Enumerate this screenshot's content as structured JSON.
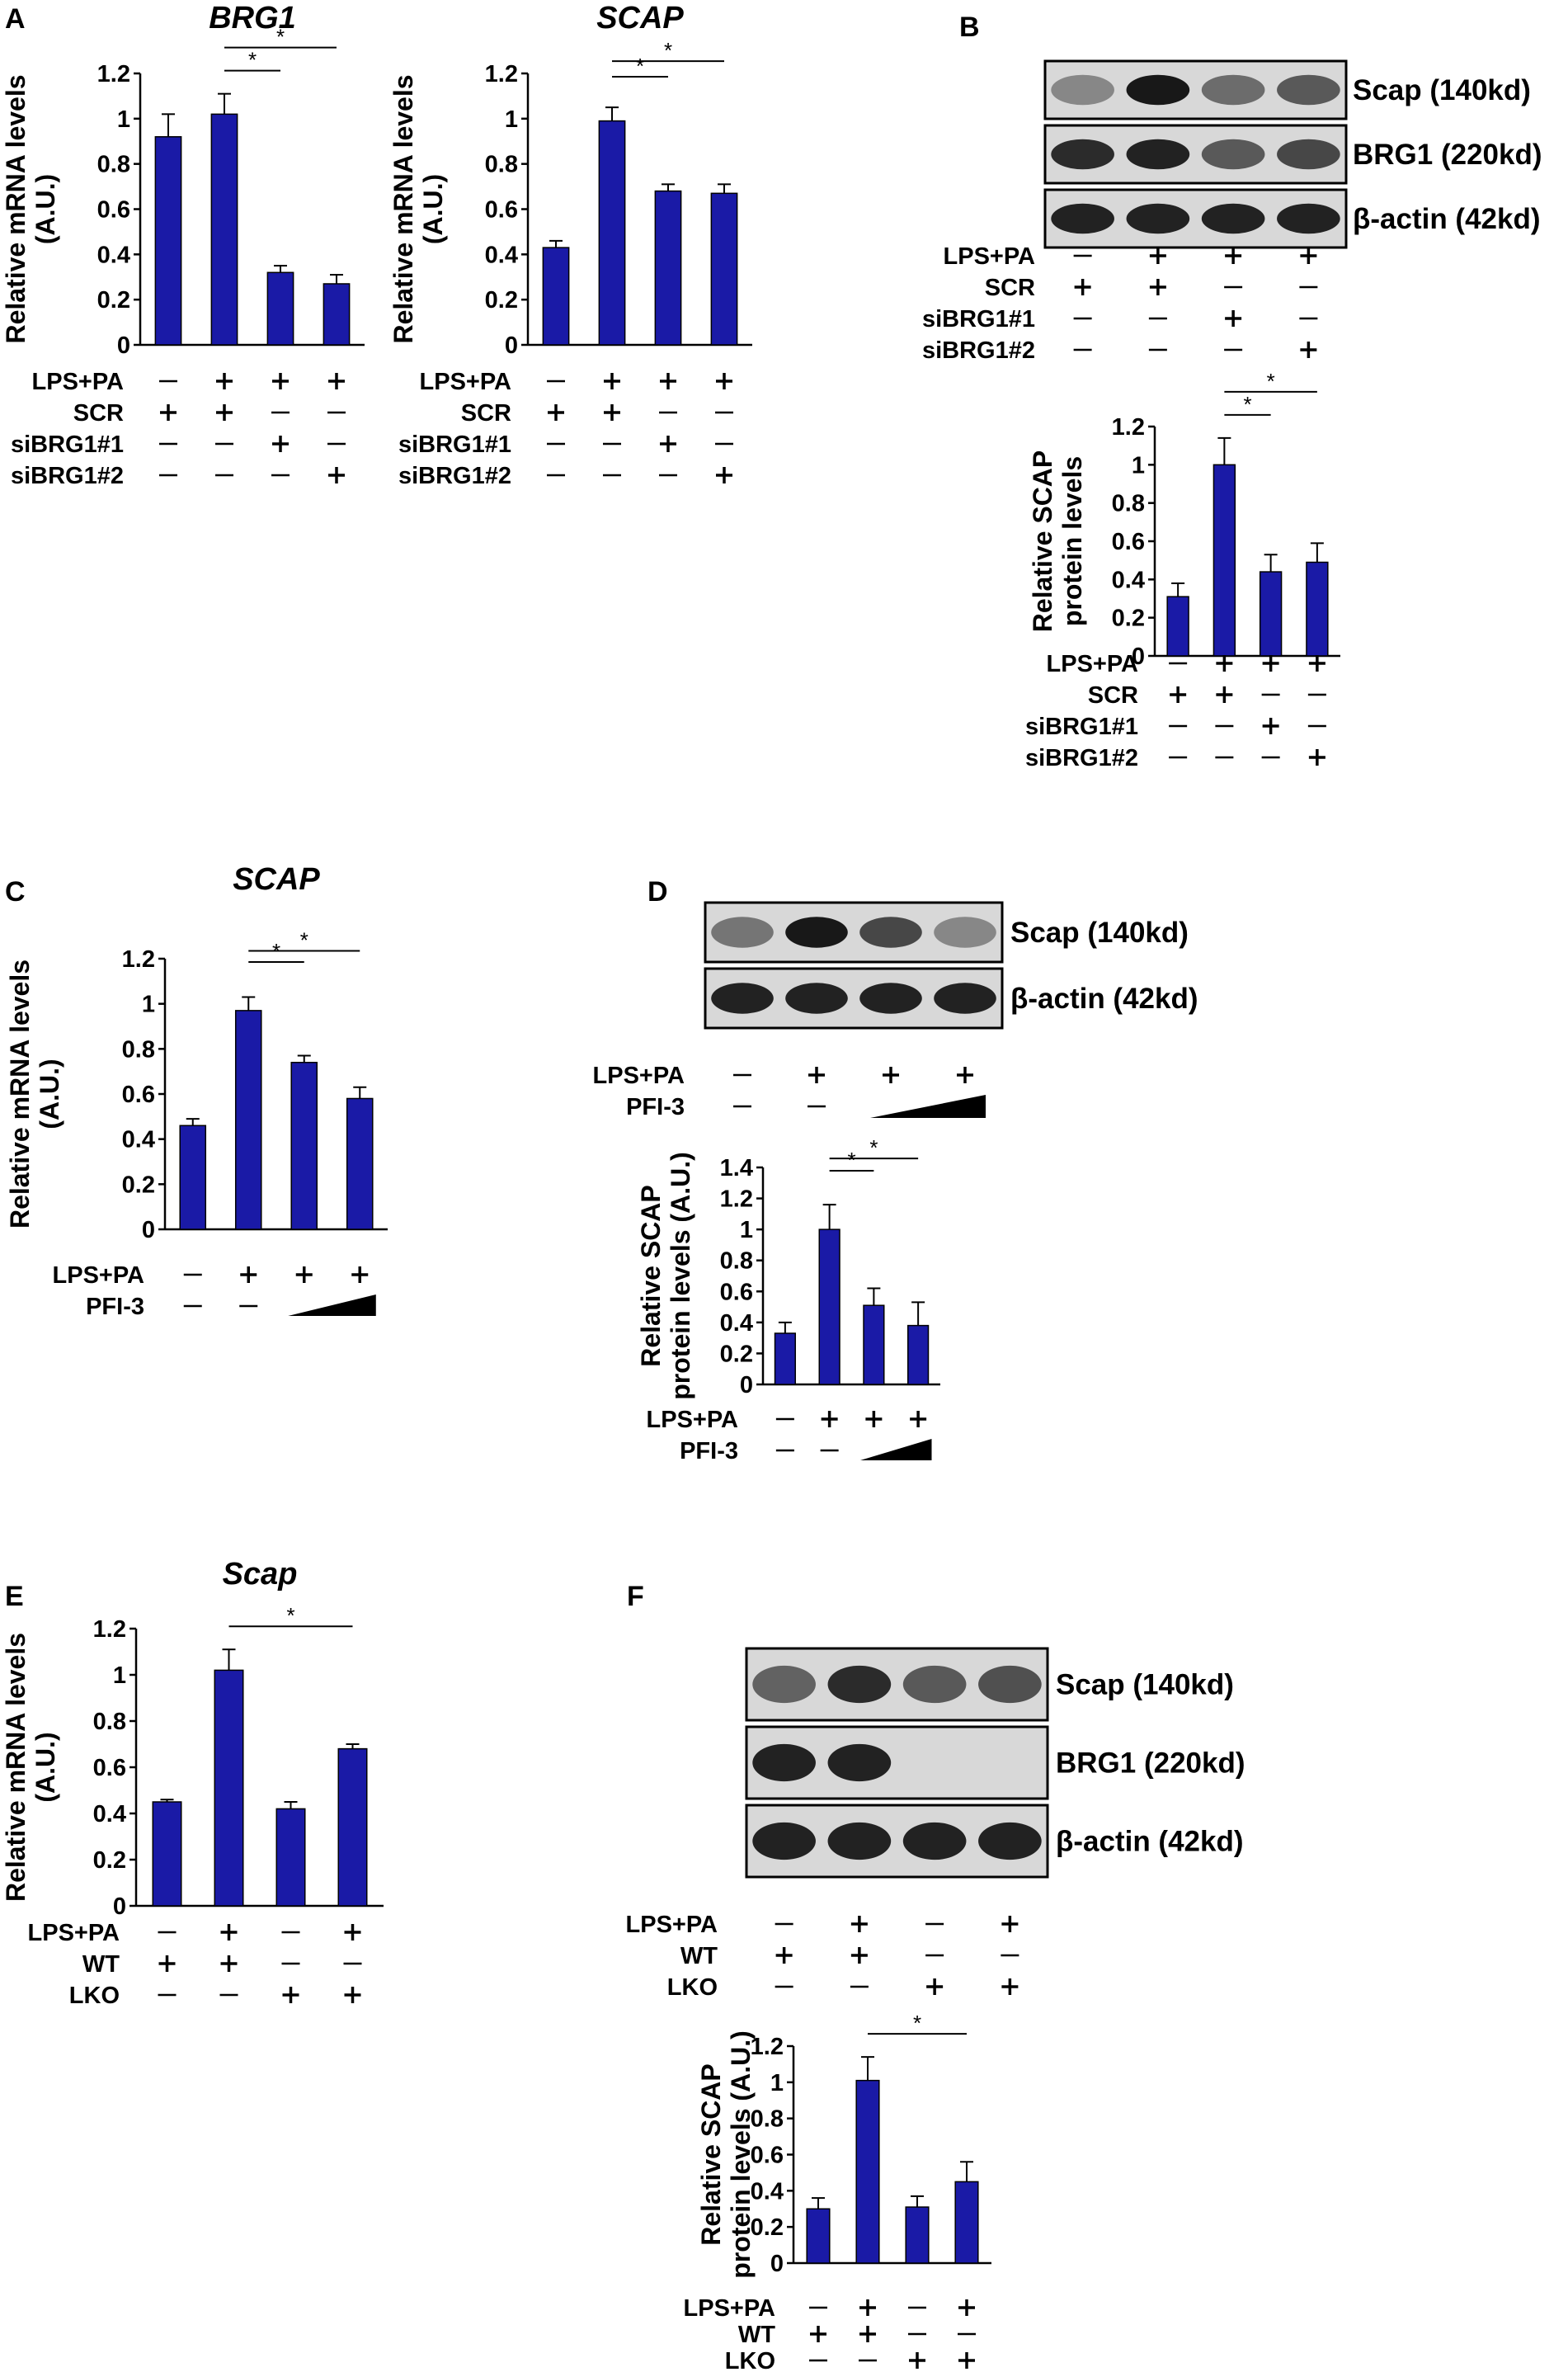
{
  "figure": {
    "panels": [
      "A",
      "B",
      "C",
      "D",
      "E",
      "F"
    ],
    "bar_color": "#1a1aa6"
  },
  "chart_data": [
    {
      "id": "A1",
      "panel": "A",
      "type": "bar",
      "title": "BRG1",
      "xlabel": "",
      "ylabel": "Relative mRNA levels (A.U.)",
      "ylim": [
        0,
        1.2
      ],
      "yticks": [
        "0",
        "0.2",
        "0.4",
        "0.6",
        "0.8",
        "1",
        "1.2"
      ],
      "categories": [
        "1",
        "2",
        "3",
        "4"
      ],
      "values": [
        0.92,
        1.02,
        0.32,
        0.27
      ],
      "errors": [
        0.1,
        0.09,
        0.03,
        0.04
      ],
      "significance": [
        {
          "from": 1,
          "to": 2,
          "label": "*"
        },
        {
          "from": 1,
          "to": 3,
          "label": "*"
        }
      ],
      "conditions": [
        {
          "name": "LPS+PA",
          "marks": [
            "−",
            "+",
            "+",
            "+"
          ]
        },
        {
          "name": "SCR",
          "marks": [
            "+",
            "+",
            "−",
            "−"
          ]
        },
        {
          "name": "siBRG1#1",
          "marks": [
            "−",
            "−",
            "+",
            "−"
          ]
        },
        {
          "name": "siBRG1#2",
          "marks": [
            "−",
            "−",
            "−",
            "+"
          ]
        }
      ]
    },
    {
      "id": "A2",
      "panel": "A",
      "type": "bar",
      "title": "SCAP",
      "xlabel": "",
      "ylabel": "Relative mRNA levels (A.U.)",
      "ylim": [
        0,
        1.2
      ],
      "yticks": [
        "0",
        "0.2",
        "0.4",
        "0.6",
        "0.8",
        "1",
        "1.2"
      ],
      "categories": [
        "1",
        "2",
        "3",
        "4"
      ],
      "values": [
        0.43,
        0.99,
        0.68,
        0.67
      ],
      "errors": [
        0.03,
        0.06,
        0.03,
        0.04
      ],
      "significance": [
        {
          "from": 1,
          "to": 2,
          "label": "*"
        },
        {
          "from": 1,
          "to": 3,
          "label": "*"
        }
      ],
      "conditions": [
        {
          "name": "LPS+PA",
          "marks": [
            "−",
            "+",
            "+",
            "+"
          ]
        },
        {
          "name": "SCR",
          "marks": [
            "+",
            "+",
            "−",
            "−"
          ]
        },
        {
          "name": "siBRG1#1",
          "marks": [
            "−",
            "−",
            "+",
            "−"
          ]
        },
        {
          "name": "siBRG1#2",
          "marks": [
            "−",
            "−",
            "−",
            "+"
          ]
        }
      ]
    },
    {
      "id": "B",
      "panel": "B",
      "type": "bar",
      "title": "",
      "xlabel": "",
      "ylabel": "Relative SCAP protein levels",
      "ylim": [
        0,
        1.2
      ],
      "yticks": [
        "0",
        "0.2",
        "0.4",
        "0.6",
        "0.8",
        "1",
        "1.2"
      ],
      "categories": [
        "1",
        "2",
        "3",
        "4"
      ],
      "values": [
        0.31,
        1.0,
        0.44,
        0.49
      ],
      "errors": [
        0.07,
        0.14,
        0.09,
        0.1
      ],
      "significance": [
        {
          "from": 1,
          "to": 2,
          "label": "*"
        },
        {
          "from": 1,
          "to": 3,
          "label": "*"
        }
      ],
      "conditions": [
        {
          "name": "LPS+PA",
          "marks": [
            "−",
            "+",
            "+",
            "+"
          ]
        },
        {
          "name": "SCR",
          "marks": [
            "+",
            "+",
            "−",
            "−"
          ]
        },
        {
          "name": "siBRG1#1",
          "marks": [
            "−",
            "−",
            "+",
            "−"
          ]
        },
        {
          "name": "siBRG1#2",
          "marks": [
            "−",
            "−",
            "−",
            "+"
          ]
        }
      ]
    },
    {
      "id": "C",
      "panel": "C",
      "type": "bar",
      "title": "SCAP",
      "xlabel": "",
      "ylabel": "Relative mRNA levels (A.U.)",
      "ylim": [
        0,
        1.2
      ],
      "yticks": [
        "0",
        "0.2",
        "0.4",
        "0.6",
        "0.8",
        "1",
        "1.2"
      ],
      "categories": [
        "1",
        "2",
        "3",
        "4"
      ],
      "values": [
        0.46,
        0.97,
        0.74,
        0.58
      ],
      "errors": [
        0.03,
        0.06,
        0.03,
        0.05
      ],
      "significance": [
        {
          "from": 1,
          "to": 2,
          "label": "*"
        },
        {
          "from": 1,
          "to": 3,
          "label": "*"
        }
      ],
      "conditions": [
        {
          "name": "LPS+PA",
          "marks": [
            "−",
            "+",
            "+",
            "+"
          ]
        },
        {
          "name": "PFI-3",
          "marks": [
            "−",
            "−",
            "wedge",
            "wedge"
          ]
        }
      ]
    },
    {
      "id": "D",
      "panel": "D",
      "type": "bar",
      "title": "",
      "xlabel": "",
      "ylabel": "Relative SCAP protein levels (A.U.)",
      "ylim": [
        0,
        1.4
      ],
      "yticks": [
        "0",
        "0.2",
        "0.4",
        "0.6",
        "0.8",
        "1",
        "1.2",
        "1.4"
      ],
      "categories": [
        "1",
        "2",
        "3",
        "4"
      ],
      "values": [
        0.33,
        1.0,
        0.51,
        0.38
      ],
      "errors": [
        0.07,
        0.16,
        0.11,
        0.15
      ],
      "significance": [
        {
          "from": 1,
          "to": 2,
          "label": "*"
        },
        {
          "from": 1,
          "to": 3,
          "label": "*"
        }
      ],
      "conditions": [
        {
          "name": "LPS+PA",
          "marks": [
            "−",
            "+",
            "+",
            "+"
          ]
        },
        {
          "name": "PFI-3",
          "marks": [
            "−",
            "−",
            "wedge",
            "wedge"
          ]
        }
      ]
    },
    {
      "id": "E",
      "panel": "E",
      "type": "bar",
      "title": "Scap",
      "xlabel": "",
      "ylabel": "Relative mRNA levels (A.U.)",
      "ylim": [
        0,
        1.2
      ],
      "yticks": [
        "0",
        "0.2",
        "0.4",
        "0.6",
        "0.8",
        "1",
        "1.2"
      ],
      "categories": [
        "1",
        "2",
        "3",
        "4"
      ],
      "values": [
        0.45,
        1.02,
        0.42,
        0.68
      ],
      "errors": [
        0.01,
        0.09,
        0.03,
        0.02
      ],
      "significance": [
        {
          "from": 1,
          "to": 3,
          "label": "*"
        }
      ],
      "conditions": [
        {
          "name": "LPS+PA",
          "marks": [
            "−",
            "+",
            "−",
            "+"
          ]
        },
        {
          "name": "WT",
          "marks": [
            "+",
            "+",
            "−",
            "−"
          ]
        },
        {
          "name": "LKO",
          "marks": [
            "−",
            "−",
            "+",
            "+"
          ]
        }
      ]
    },
    {
      "id": "F",
      "panel": "F",
      "type": "bar",
      "title": "",
      "xlabel": "",
      "ylabel": "Relative SCAP protein levels (A.U.)",
      "ylim": [
        0,
        1.2
      ],
      "yticks": [
        "0",
        "0.2",
        "0.4",
        "0.6",
        "0.8",
        "1",
        "1.2"
      ],
      "categories": [
        "1",
        "2",
        "3",
        "4"
      ],
      "values": [
        0.3,
        1.01,
        0.31,
        0.45
      ],
      "errors": [
        0.06,
        0.13,
        0.06,
        0.11
      ],
      "significance": [
        {
          "from": 1,
          "to": 3,
          "label": "*"
        }
      ],
      "conditions": [
        {
          "name": "LPS+PA",
          "marks": [
            "−",
            "+",
            "−",
            "+"
          ]
        },
        {
          "name": "WT",
          "marks": [
            "+",
            "+",
            "−",
            "−"
          ]
        },
        {
          "name": "LKO",
          "marks": [
            "−",
            "−",
            "+",
            "+"
          ]
        }
      ]
    }
  ],
  "blots": [
    {
      "panel": "B",
      "bands": [
        {
          "label": "Scap (140kd)",
          "intensity": [
            0.35,
            0.95,
            0.5,
            0.6
          ]
        },
        {
          "label": "BRG1 (220kd)",
          "intensity": [
            0.85,
            0.9,
            0.6,
            0.7
          ]
        },
        {
          "label": "β-actin (42kd)",
          "intensity": [
            0.9,
            0.9,
            0.9,
            0.9
          ]
        }
      ],
      "conditions": [
        {
          "name": "LPS+PA",
          "marks": [
            "−",
            "+",
            "+",
            "+"
          ]
        },
        {
          "name": "SCR",
          "marks": [
            "+",
            "+",
            "−",
            "−"
          ]
        },
        {
          "name": "siBRG1#1",
          "marks": [
            "−",
            "−",
            "+",
            "−"
          ]
        },
        {
          "name": "siBRG1#2",
          "marks": [
            "−",
            "−",
            "−",
            "+"
          ]
        }
      ]
    },
    {
      "panel": "D",
      "bands": [
        {
          "label": "Scap (140kd)",
          "intensity": [
            0.45,
            0.95,
            0.7,
            0.35
          ]
        },
        {
          "label": "β-actin (42kd)",
          "intensity": [
            0.9,
            0.9,
            0.9,
            0.9
          ]
        }
      ],
      "conditions": [
        {
          "name": "LPS+PA",
          "marks": [
            "−",
            "+",
            "+",
            "+"
          ]
        },
        {
          "name": "PFI-3",
          "marks": [
            "−",
            "−",
            "wedge",
            "wedge"
          ]
        }
      ]
    },
    {
      "panel": "F",
      "bands": [
        {
          "label": "Scap (140kd)",
          "intensity": [
            0.55,
            0.85,
            0.6,
            0.65
          ]
        },
        {
          "label": "BRG1 (220kd)",
          "intensity": [
            0.9,
            0.9,
            0.0,
            0.0
          ]
        },
        {
          "label": "β-actin (42kd)",
          "intensity": [
            0.9,
            0.9,
            0.9,
            0.9
          ]
        }
      ],
      "conditions": [
        {
          "name": "LPS+PA",
          "marks": [
            "−",
            "+",
            "−",
            "+"
          ]
        },
        {
          "name": "WT",
          "marks": [
            "+",
            "+",
            "−",
            "−"
          ]
        },
        {
          "name": "LKO",
          "marks": [
            "−",
            "−",
            "+",
            "+"
          ]
        }
      ]
    }
  ]
}
